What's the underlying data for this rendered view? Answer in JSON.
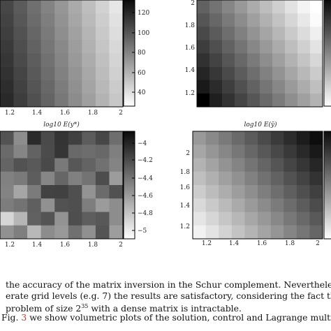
{
  "figure": {
    "panels": [
      {
        "id": "top-left",
        "xticks": [
          "1.2",
          "1.4",
          "1.6",
          "1.8",
          "2"
        ],
        "yticks": [],
        "xlabel": "log10 E(y*)",
        "colorbar_ticks": [
          "120",
          "100",
          "80",
          "60",
          "40"
        ]
      },
      {
        "id": "top-right",
        "xticks": [],
        "yticks": [
          "2",
          "1.8",
          "1.6",
          "1.4",
          "1.2"
        ],
        "xlabel": "log10 E(ȳ)",
        "colorbar_ticks": []
      },
      {
        "id": "bottom-left",
        "xticks": [
          "1.2",
          "1.4",
          "1.6",
          "1.8",
          "2"
        ],
        "yticks": [],
        "xlabel": "",
        "colorbar_ticks": [
          "−4",
          "−4.2",
          "−4.4",
          "−4.6",
          "−4.8",
          "−5"
        ]
      },
      {
        "id": "bottom-right",
        "xticks": [
          "1.2",
          "1.4",
          "1.6",
          "1.8",
          "2"
        ],
        "yticks": [
          "2",
          "1.8",
          "1.6",
          "1.4",
          "1.2"
        ],
        "xlabel": "",
        "colorbar_ticks": []
      }
    ]
  },
  "text": {
    "line1": "the accuracy of the matrix inversion in the Schur complement. Neverthele",
    "line2": "erate grid levels (e.g. 7) the results are satisfactory, considering the fact tha",
    "line3_pre": "problem of size 2",
    "line3_sup": "35",
    "line3_post": " with a dense matrix is intractable.",
    "line4_pre": "Fig. ",
    "line4_ref": "3",
    "line4_post": " we show volumetric plots of the solution, control and Lagrange multi"
  }
}
